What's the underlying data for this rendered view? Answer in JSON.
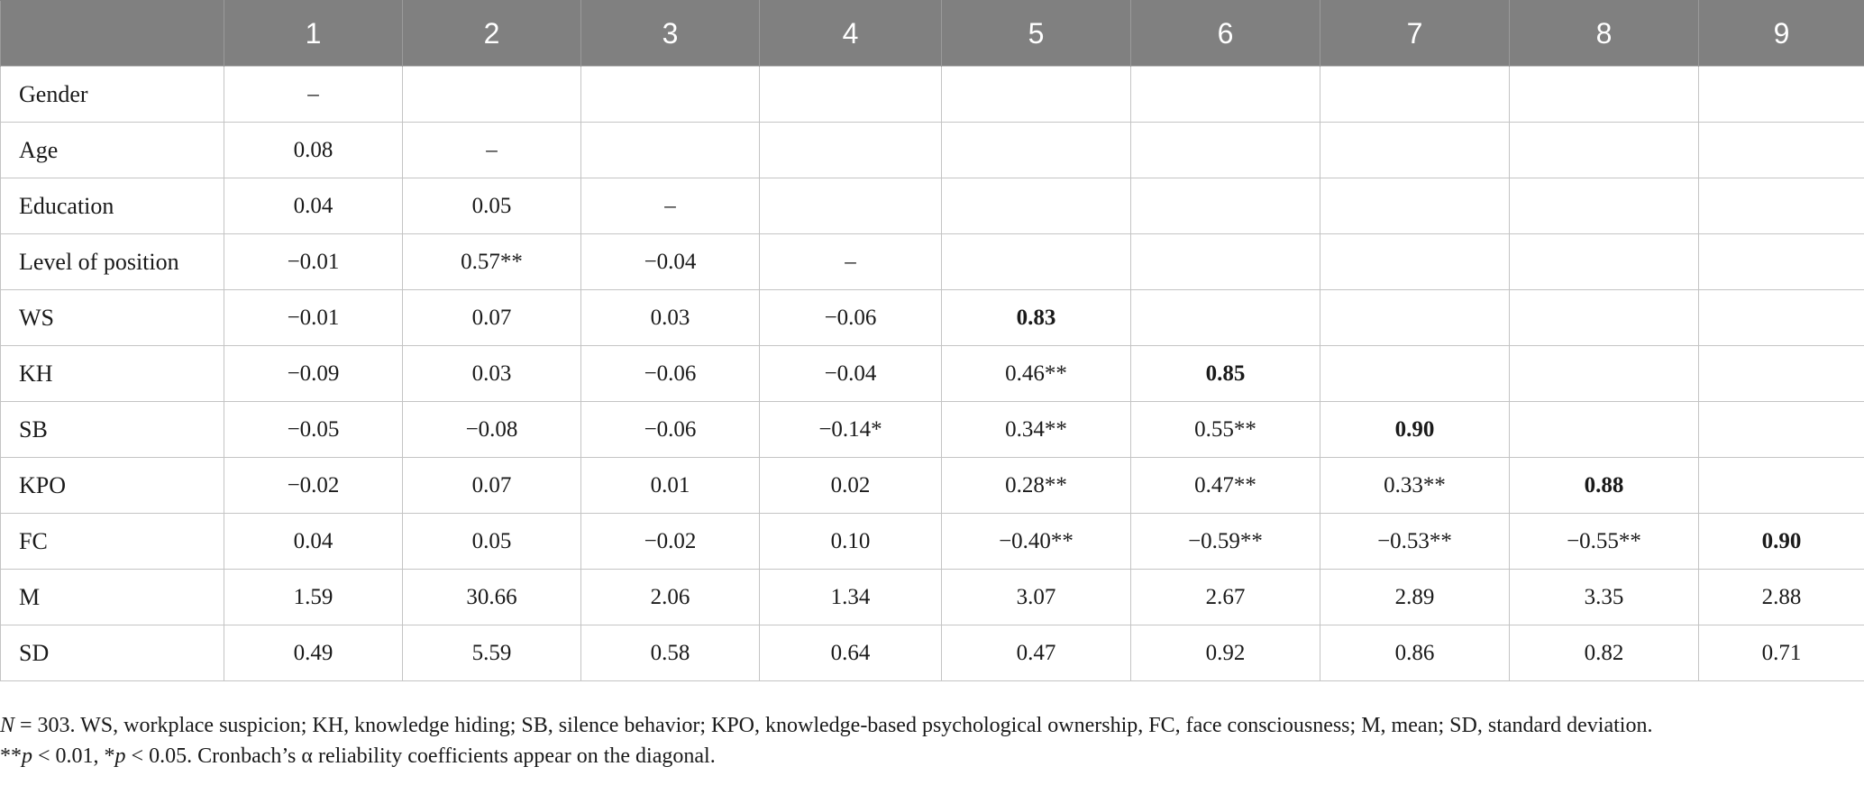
{
  "table": {
    "headers": [
      "",
      "1",
      "2",
      "3",
      "4",
      "5",
      "6",
      "7",
      "8",
      "9"
    ],
    "rows": [
      {
        "label": "Gender",
        "cells": [
          "–",
          "",
          "",
          "",
          "",
          "",
          "",
          "",
          ""
        ],
        "bold": []
      },
      {
        "label": "Age",
        "cells": [
          "0.08",
          "–",
          "",
          "",
          "",
          "",
          "",
          "",
          ""
        ],
        "bold": []
      },
      {
        "label": "Education",
        "cells": [
          "0.04",
          "0.05",
          "–",
          "",
          "",
          "",
          "",
          "",
          ""
        ],
        "bold": []
      },
      {
        "label": "Level of position",
        "cells": [
          "−0.01",
          "0.57**",
          "−0.04",
          "–",
          "",
          "",
          "",
          "",
          ""
        ],
        "bold": []
      },
      {
        "label": "WS",
        "cells": [
          "−0.01",
          "0.07",
          "0.03",
          "−0.06",
          "0.83",
          "",
          "",
          "",
          ""
        ],
        "bold": [
          4
        ]
      },
      {
        "label": "KH",
        "cells": [
          "−0.09",
          "0.03",
          "−0.06",
          "−0.04",
          "0.46**",
          "0.85",
          "",
          "",
          ""
        ],
        "bold": [
          5
        ]
      },
      {
        "label": "SB",
        "cells": [
          "−0.05",
          "−0.08",
          "−0.06",
          "−0.14*",
          "0.34**",
          "0.55**",
          "0.90",
          "",
          ""
        ],
        "bold": [
          6
        ]
      },
      {
        "label": "KPO",
        "cells": [
          "−0.02",
          "0.07",
          "0.01",
          "0.02",
          "0.28**",
          "0.47**",
          "0.33**",
          "0.88",
          ""
        ],
        "bold": [
          7
        ]
      },
      {
        "label": "FC",
        "cells": [
          "0.04",
          "0.05",
          "−0.02",
          "0.10",
          "−0.40**",
          "−0.59**",
          "−0.53**",
          "−0.55**",
          "0.90"
        ],
        "bold": [
          8
        ]
      },
      {
        "label": "M",
        "cells": [
          "1.59",
          "30.66",
          "2.06",
          "1.34",
          "3.07",
          "2.67",
          "2.89",
          "3.35",
          "2.88"
        ],
        "bold": []
      },
      {
        "label": "SD",
        "cells": [
          "0.49",
          "5.59",
          "0.58",
          "0.64",
          "0.47",
          "0.92",
          "0.86",
          "0.82",
          "0.71"
        ],
        "bold": []
      }
    ]
  },
  "footnote": {
    "line1_n_symbol": "N",
    "line1_text": " = 303. WS, workplace suspicion; KH, knowledge hiding; SB, silence behavior; KPO, knowledge-based psychological ownership, FC, face consciousness; M, mean; SD, standard deviation.",
    "line2_p1_prefix": "**",
    "line2_p1_symbol": "p",
    "line2_p1_text": " < 0.01, *",
    "line2_p2_symbol": "p",
    "line2_p2_text": " < 0.05. Cronbach’s α reliability coefficients appear on the diagonal."
  }
}
